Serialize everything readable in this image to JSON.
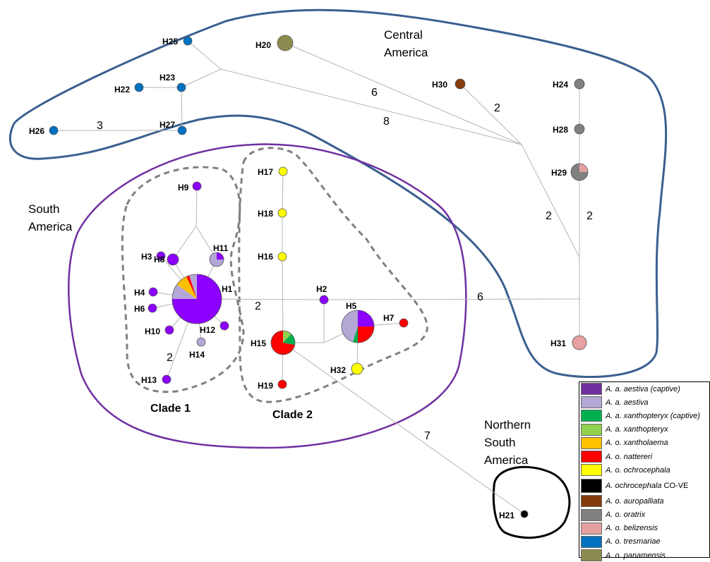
{
  "colors": {
    "aestiva_captive": "#7030a0",
    "aestiva": "#b4a7d6",
    "xanthopteryx_captive": "#00b050",
    "xanthopteryx": "#92d050",
    "xantholaema": "#ffc000",
    "nattereri": "#ff0000",
    "ochrocephala": "#ffff00",
    "covE": "#000000",
    "auropalliata": "#843c0c",
    "oratrix": "#808080",
    "belizensis": "#e6a0a0",
    "tresmariae": "#0070c0",
    "panamensis": "#8c8c50",
    "clade_node_purple": "#8b00ff",
    "region_central": "#3a5f8f",
    "region_south": "#7030a0",
    "region_north": "#000000"
  },
  "regions": {
    "central": [
      "Central",
      "America"
    ],
    "south": [
      "South",
      "America"
    ],
    "north": [
      "Northern",
      "South",
      "America"
    ]
  },
  "clades": {
    "clade1": "Clade 1",
    "clade2": "Clade 2"
  },
  "haplotypes": [
    {
      "id": "H1",
      "slices": [
        {
          "c": "clade_node_purple",
          "v": 75
        },
        {
          "c": "aestiva",
          "v": 10
        },
        {
          "c": "xantholaema",
          "v": 8
        },
        {
          "c": "nattereri",
          "v": 2
        },
        {
          "c": "aestiva",
          "v": 5
        }
      ]
    },
    {
      "id": "H2",
      "slices": [
        {
          "c": "clade_node_purple",
          "v": 100
        }
      ]
    },
    {
      "id": "H3",
      "slices": [
        {
          "c": "clade_node_purple",
          "v": 100
        }
      ]
    },
    {
      "id": "H4",
      "slices": [
        {
          "c": "clade_node_purple",
          "v": 100
        }
      ]
    },
    {
      "id": "H5",
      "slices": [
        {
          "c": "clade_node_purple",
          "v": 25
        },
        {
          "c": "nattereri",
          "v": 25
        },
        {
          "c": "xanthopteryx_captive",
          "v": 5
        },
        {
          "c": "aestiva",
          "v": 45
        }
      ]
    },
    {
      "id": "H6",
      "slices": [
        {
          "c": "clade_node_purple",
          "v": 100
        }
      ]
    },
    {
      "id": "H7",
      "slices": [
        {
          "c": "nattereri",
          "v": 100
        }
      ]
    },
    {
      "id": "H8",
      "slices": [
        {
          "c": "clade_node_purple",
          "v": 100
        }
      ]
    },
    {
      "id": "H9",
      "slices": [
        {
          "c": "clade_node_purple",
          "v": 100
        }
      ]
    },
    {
      "id": "H10",
      "slices": [
        {
          "c": "clade_node_purple",
          "v": 100
        }
      ]
    },
    {
      "id": "H11",
      "slices": [
        {
          "c": "clade_node_purple",
          "v": 25
        },
        {
          "c": "aestiva",
          "v": 75
        }
      ]
    },
    {
      "id": "H12",
      "slices": [
        {
          "c": "clade_node_purple",
          "v": 100
        }
      ]
    },
    {
      "id": "H13",
      "slices": [
        {
          "c": "clade_node_purple",
          "v": 100
        }
      ]
    },
    {
      "id": "H14",
      "slices": [
        {
          "c": "aestiva",
          "v": 100
        }
      ]
    },
    {
      "id": "H15",
      "slices": [
        {
          "c": "xanthopteryx",
          "v": 12
        },
        {
          "c": "xanthopteryx_captive",
          "v": 16
        },
        {
          "c": "nattereri",
          "v": 72
        }
      ]
    },
    {
      "id": "H16",
      "slices": [
        {
          "c": "ochrocephala",
          "v": 100
        }
      ]
    },
    {
      "id": "H17",
      "slices": [
        {
          "c": "ochrocephala",
          "v": 100
        }
      ]
    },
    {
      "id": "H18",
      "slices": [
        {
          "c": "ochrocephala",
          "v": 100
        }
      ]
    },
    {
      "id": "H19",
      "slices": [
        {
          "c": "nattereri",
          "v": 100
        }
      ]
    },
    {
      "id": "H20",
      "slices": [
        {
          "c": "panamensis",
          "v": 100
        }
      ]
    },
    {
      "id": "H21",
      "slices": [
        {
          "c": "covE",
          "v": 100
        }
      ]
    },
    {
      "id": "H22",
      "slices": [
        {
          "c": "tresmariae",
          "v": 100
        }
      ]
    },
    {
      "id": "H23",
      "slices": [
        {
          "c": "tresmariae",
          "v": 100
        }
      ]
    },
    {
      "id": "H24",
      "slices": [
        {
          "c": "oratrix",
          "v": 100
        }
      ]
    },
    {
      "id": "H25",
      "slices": [
        {
          "c": "tresmariae",
          "v": 100
        }
      ]
    },
    {
      "id": "H26",
      "slices": [
        {
          "c": "tresmariae",
          "v": 100
        }
      ]
    },
    {
      "id": "H27",
      "slices": [
        {
          "c": "tresmariae",
          "v": 100
        }
      ]
    },
    {
      "id": "H28",
      "slices": [
        {
          "c": "oratrix",
          "v": 100
        }
      ]
    },
    {
      "id": "H29",
      "slices": [
        {
          "c": "belizensis",
          "v": 25
        },
        {
          "c": "oratrix",
          "v": 75
        }
      ]
    },
    {
      "id": "H30",
      "slices": [
        {
          "c": "auropalliata",
          "v": 100
        }
      ]
    },
    {
      "id": "H31",
      "slices": [
        {
          "c": "belizensis",
          "v": 100
        }
      ]
    },
    {
      "id": "H32",
      "slices": [
        {
          "c": "ochrocephala",
          "v": 100
        }
      ]
    }
  ],
  "mutation_steps": [
    "3",
    "6",
    "8",
    "2",
    "2",
    "2",
    "2",
    "6",
    "2",
    "7"
  ],
  "legend": [
    {
      "text": "A. a. aestiva (captive)",
      "color": "aestiva_captive"
    },
    {
      "text": "A. a. aestiva",
      "color": "aestiva"
    },
    {
      "text": "A. a. xanthopteryx (captive)",
      "color": "xanthopteryx_captive"
    },
    {
      "text": "A. a. xanthopteryx",
      "color": "xanthopteryx"
    },
    {
      "text": "A. o. xantholaema",
      "color": "xantholaema"
    },
    {
      "text": "A. o. nattereri",
      "color": "nattereri"
    },
    {
      "text": "A. o. ochrocephala",
      "color": "ochrocephala"
    },
    {
      "text": "A. ochrocephala",
      "suffix": " CO-VE",
      "color": "covE"
    },
    {
      "text": "A. o. auropalliata",
      "color": "auropalliata"
    },
    {
      "text": "A. o. oratrix",
      "color": "oratrix"
    },
    {
      "text": "A. o. belizensis",
      "color": "belizensis"
    },
    {
      "text": "A. o. tresmariae",
      "color": "tresmariae"
    },
    {
      "text": "A. o. panamensis",
      "color": "panamensis"
    }
  ]
}
